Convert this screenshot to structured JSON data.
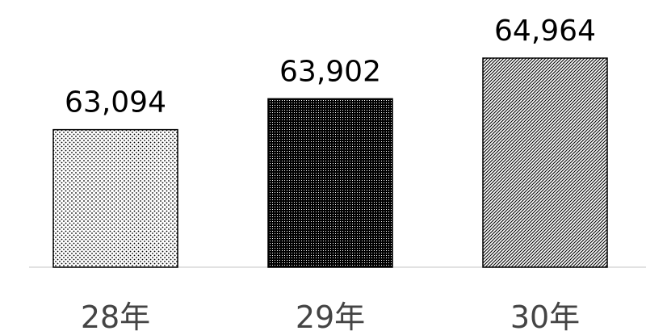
{
  "chart_data": {
    "type": "bar",
    "categories": [
      "28年",
      "29年",
      "30年"
    ],
    "values": [
      63094,
      63902,
      64964
    ],
    "value_labels": [
      "63,094",
      "63,902",
      "64,964"
    ],
    "title": "",
    "xlabel": "",
    "ylabel": "",
    "ylim": [
      59500,
      65900
    ],
    "grid": false,
    "legend": "none",
    "bar_patterns": [
      "light-dots",
      "dense-dark-dots",
      "diagonal-hatch"
    ],
    "colors": {
      "bar_outline": "#000000",
      "axis_line": "#d9d9d9",
      "value_text": "#000000",
      "category_text": "#444444"
    }
  }
}
